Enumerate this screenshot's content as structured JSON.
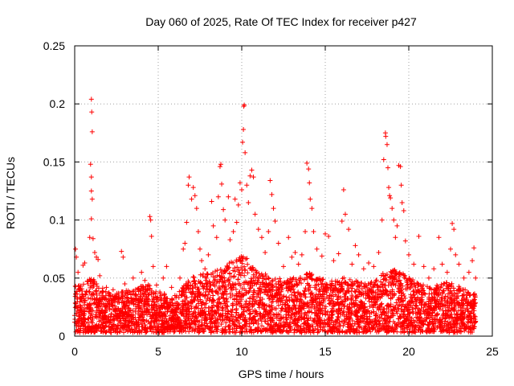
{
  "chart_data": {
    "type": "scatter",
    "title": "Day 060 of 2025, Rate Of TEC Index for receiver p427",
    "xlabel": "GPS time / hours",
    "ylabel": "ROTI / TECUs",
    "xlim": [
      0,
      25
    ],
    "ylim": [
      0,
      0.25
    ],
    "x_ticks": [
      0,
      5,
      10,
      15,
      20,
      25
    ],
    "x_tick_labels": [
      "0",
      "5",
      "10",
      "15",
      "20",
      "25"
    ],
    "y_ticks": [
      0,
      0.05,
      0.1,
      0.15,
      0.2,
      0.25
    ],
    "y_tick_labels": [
      "0",
      "0.05",
      "0.1",
      "0.15",
      "0.2",
      "0.25"
    ],
    "grid": true,
    "marker": "plus",
    "color": "#ff0000",
    "series": [
      {
        "name": "ROTI",
        "points": [
          [
            0.0,
            0.012
          ],
          [
            0.05,
            0.075
          ],
          [
            0.1,
            0.068
          ],
          [
            0.2,
            0.055
          ],
          [
            0.3,
            0.041
          ],
          [
            0.4,
            0.032
          ],
          [
            0.5,
            0.061
          ],
          [
            0.6,
            0.063
          ],
          [
            0.7,
            0.038
          ],
          [
            0.8,
            0.045
          ],
          [
            0.9,
            0.085
          ],
          [
            0.95,
            0.148
          ],
          [
            1.0,
            0.204
          ],
          [
            1.02,
            0.193
          ],
          [
            1.05,
            0.176
          ],
          [
            1.0,
            0.137
          ],
          [
            1.0,
            0.125
          ],
          [
            1.05,
            0.118
          ],
          [
            1.0,
            0.101
          ],
          [
            1.1,
            0.084
          ],
          [
            1.2,
            0.072
          ],
          [
            1.3,
            0.068
          ],
          [
            1.4,
            0.066
          ],
          [
            1.5,
            0.052
          ],
          [
            1.7,
            0.038
          ],
          [
            1.9,
            0.042
          ],
          [
            2.1,
            0.035
          ],
          [
            2.3,
            0.04
          ],
          [
            2.5,
            0.033
          ],
          [
            2.8,
            0.073
          ],
          [
            2.9,
            0.068
          ],
          [
            3.0,
            0.045
          ],
          [
            3.3,
            0.038
          ],
          [
            3.5,
            0.05
          ],
          [
            3.8,
            0.041
          ],
          [
            4.0,
            0.055
          ],
          [
            4.2,
            0.048
          ],
          [
            4.5,
            0.103
          ],
          [
            4.55,
            0.1
          ],
          [
            4.6,
            0.086
          ],
          [
            4.7,
            0.06
          ],
          [
            4.9,
            0.044
          ],
          [
            5.1,
            0.038
          ],
          [
            5.3,
            0.05
          ],
          [
            5.5,
            0.06
          ],
          [
            5.8,
            0.042
          ],
          [
            6.0,
            0.035
          ],
          [
            6.3,
            0.05
          ],
          [
            6.5,
            0.075
          ],
          [
            6.6,
            0.08
          ],
          [
            6.7,
            0.098
          ],
          [
            6.8,
            0.13
          ],
          [
            6.85,
            0.137
          ],
          [
            7.0,
            0.118
          ],
          [
            7.1,
            0.128
          ],
          [
            7.2,
            0.121
          ],
          [
            7.3,
            0.11
          ],
          [
            7.4,
            0.09
          ],
          [
            7.5,
            0.075
          ],
          [
            7.6,
            0.065
          ],
          [
            7.8,
            0.058
          ],
          [
            8.0,
            0.07
          ],
          [
            8.2,
            0.116
          ],
          [
            8.3,
            0.095
          ],
          [
            8.5,
            0.085
          ],
          [
            8.6,
            0.12
          ],
          [
            8.7,
            0.146
          ],
          [
            8.75,
            0.148
          ],
          [
            8.8,
            0.131
          ],
          [
            8.9,
            0.109
          ],
          [
            9.0,
            0.1
          ],
          [
            9.2,
            0.12
          ],
          [
            9.3,
            0.083
          ],
          [
            9.5,
            0.09
          ],
          [
            9.6,
            0.118
          ],
          [
            9.7,
            0.098
          ],
          [
            9.8,
            0.113
          ],
          [
            9.9,
            0.132
          ],
          [
            10.0,
            0.126
          ],
          [
            10.05,
            0.167
          ],
          [
            10.1,
            0.178
          ],
          [
            10.12,
            0.198
          ],
          [
            10.15,
            0.199
          ],
          [
            10.2,
            0.158
          ],
          [
            10.3,
            0.13
          ],
          [
            10.4,
            0.115
          ],
          [
            10.5,
            0.138
          ],
          [
            10.6,
            0.143
          ],
          [
            10.7,
            0.137
          ],
          [
            10.8,
            0.105
          ],
          [
            11.0,
            0.092
          ],
          [
            11.2,
            0.085
          ],
          [
            11.4,
            0.072
          ],
          [
            11.6,
            0.09
          ],
          [
            11.7,
            0.134
          ],
          [
            11.8,
            0.122
          ],
          [
            11.9,
            0.11
          ],
          [
            12.0,
            0.099
          ],
          [
            12.2,
            0.08
          ],
          [
            12.5,
            0.06
          ],
          [
            12.8,
            0.085
          ],
          [
            13.0,
            0.068
          ],
          [
            13.2,
            0.072
          ],
          [
            13.4,
            0.062
          ],
          [
            13.6,
            0.07
          ],
          [
            13.8,
            0.09
          ],
          [
            13.9,
            0.149
          ],
          [
            14.0,
            0.144
          ],
          [
            14.05,
            0.132
          ],
          [
            14.1,
            0.118
          ],
          [
            14.2,
            0.11
          ],
          [
            14.3,
            0.09
          ],
          [
            14.5,
            0.075
          ],
          [
            14.8,
            0.069
          ],
          [
            15.0,
            0.088
          ],
          [
            15.2,
            0.086
          ],
          [
            15.5,
            0.065
          ],
          [
            15.8,
            0.071
          ],
          [
            16.0,
            0.099
          ],
          [
            16.1,
            0.126
          ],
          [
            16.2,
            0.105
          ],
          [
            16.4,
            0.092
          ],
          [
            16.6,
            0.062
          ],
          [
            16.8,
            0.078
          ],
          [
            17.0,
            0.07
          ],
          [
            17.3,
            0.058
          ],
          [
            17.6,
            0.063
          ],
          [
            17.9,
            0.06
          ],
          [
            18.2,
            0.072
          ],
          [
            18.4,
            0.1
          ],
          [
            18.5,
            0.152
          ],
          [
            18.6,
            0.175
          ],
          [
            18.62,
            0.172
          ],
          [
            18.7,
            0.165
          ],
          [
            18.75,
            0.145
          ],
          [
            18.8,
            0.128
          ],
          [
            18.85,
            0.121
          ],
          [
            18.9,
            0.119
          ],
          [
            19.0,
            0.11
          ],
          [
            19.1,
            0.1
          ],
          [
            19.2,
            0.085
          ],
          [
            19.3,
            0.095
          ],
          [
            19.4,
            0.147
          ],
          [
            19.5,
            0.146
          ],
          [
            19.55,
            0.13
          ],
          [
            19.6,
            0.115
          ],
          [
            19.7,
            0.108
          ],
          [
            19.8,
            0.082
          ],
          [
            20.0,
            0.07
          ],
          [
            20.3,
            0.062
          ],
          [
            20.6,
            0.086
          ],
          [
            20.9,
            0.06
          ],
          [
            21.2,
            0.05
          ],
          [
            21.5,
            0.058
          ],
          [
            21.8,
            0.085
          ],
          [
            22.0,
            0.062
          ],
          [
            22.3,
            0.055
          ],
          [
            22.5,
            0.075
          ],
          [
            22.6,
            0.097
          ],
          [
            22.7,
            0.092
          ],
          [
            22.8,
            0.07
          ],
          [
            23.0,
            0.062
          ],
          [
            23.3,
            0.05
          ],
          [
            23.6,
            0.055
          ],
          [
            23.8,
            0.065
          ],
          [
            23.9,
            0.076
          ],
          [
            24.0,
            0.05
          ]
        ],
        "dense_band": [
          [
            0.0,
            0.04
          ],
          [
            0.5,
            0.042
          ],
          [
            1.0,
            0.048
          ],
          [
            1.5,
            0.04
          ],
          [
            2.0,
            0.036
          ],
          [
            2.5,
            0.034
          ],
          [
            3.0,
            0.036
          ],
          [
            3.5,
            0.038
          ],
          [
            4.0,
            0.04
          ],
          [
            4.5,
            0.042
          ],
          [
            5.0,
            0.034
          ],
          [
            5.5,
            0.035
          ],
          [
            6.0,
            0.03
          ],
          [
            6.5,
            0.04
          ],
          [
            7.0,
            0.048
          ],
          [
            7.5,
            0.05
          ],
          [
            8.0,
            0.052
          ],
          [
            8.5,
            0.055
          ],
          [
            9.0,
            0.058
          ],
          [
            9.5,
            0.062
          ],
          [
            10.0,
            0.068
          ],
          [
            10.5,
            0.062
          ],
          [
            11.0,
            0.055
          ],
          [
            11.5,
            0.05
          ],
          [
            12.0,
            0.048
          ],
          [
            12.5,
            0.046
          ],
          [
            13.0,
            0.047
          ],
          [
            13.5,
            0.048
          ],
          [
            14.0,
            0.052
          ],
          [
            14.5,
            0.048
          ],
          [
            15.0,
            0.046
          ],
          [
            15.5,
            0.045
          ],
          [
            16.0,
            0.048
          ],
          [
            16.5,
            0.046
          ],
          [
            17.0,
            0.044
          ],
          [
            17.5,
            0.042
          ],
          [
            18.0,
            0.045
          ],
          [
            18.5,
            0.052
          ],
          [
            19.0,
            0.055
          ],
          [
            19.5,
            0.052
          ],
          [
            20.0,
            0.048
          ],
          [
            20.5,
            0.044
          ],
          [
            21.0,
            0.042
          ],
          [
            21.5,
            0.04
          ],
          [
            22.0,
            0.042
          ],
          [
            22.5,
            0.045
          ],
          [
            23.0,
            0.04
          ],
          [
            23.5,
            0.036
          ],
          [
            24.0,
            0.034
          ]
        ]
      }
    ]
  }
}
